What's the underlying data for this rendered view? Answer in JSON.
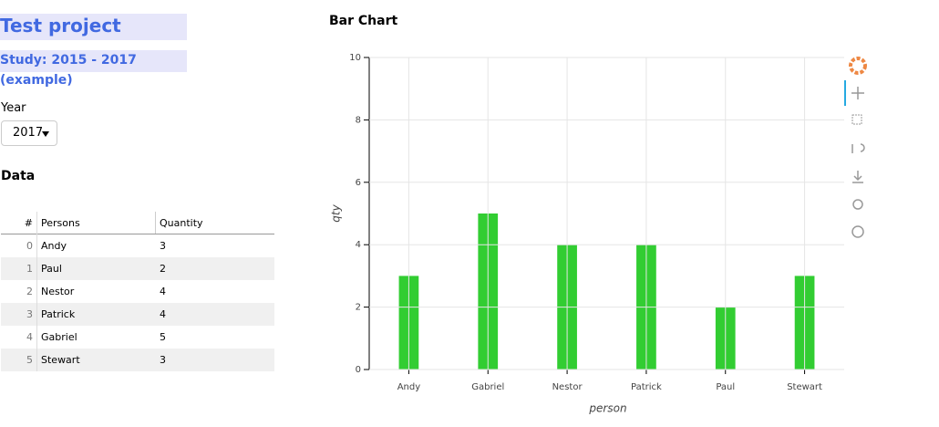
{
  "header": {
    "title": "Test project",
    "subtitle": "Study: 2015 - 2017 (example)"
  },
  "year_select": {
    "label": "Year",
    "value": "2017"
  },
  "data_section": {
    "title": "Data"
  },
  "table": {
    "columns": [
      "#",
      "Persons",
      "Quantity"
    ],
    "rows": [
      [
        0,
        "Andy",
        3
      ],
      [
        1,
        "Paul",
        2
      ],
      [
        2,
        "Nestor",
        4
      ],
      [
        3,
        "Patrick",
        4
      ],
      [
        4,
        "Gabriel",
        5
      ],
      [
        5,
        "Stewart",
        3
      ]
    ]
  },
  "chart_data": {
    "type": "bar",
    "title": "Bar Chart",
    "x_label": "person",
    "y_label": "qty",
    "categories": [
      "Andy",
      "Gabriel",
      "Nestor",
      "Patrick",
      "Paul",
      "Stewart"
    ],
    "values": [
      3,
      5,
      4,
      4,
      2,
      3
    ],
    "color": "#32cd32",
    "ylim": [
      0,
      10
    ],
    "yticks": [
      0,
      2,
      4,
      6,
      8,
      10
    ],
    "grid": true
  }
}
